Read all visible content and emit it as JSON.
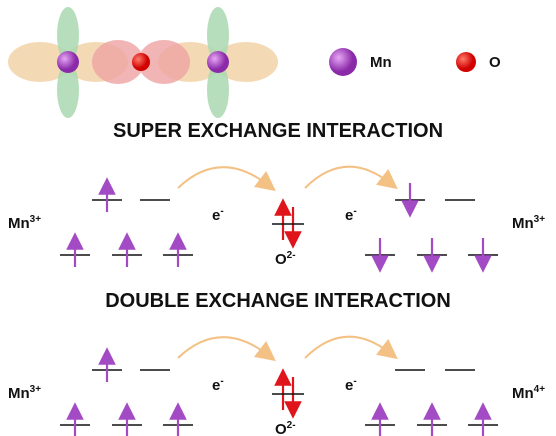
{
  "legend": [
    {
      "label": "Mn"
    },
    {
      "label": "O"
    }
  ],
  "sections": [
    {
      "title": "SUPER EXCHANGE INTERACTION",
      "left_ion": {
        "base": "Mn",
        "sup": "3+"
      },
      "right_ion": {
        "base": "Mn",
        "sup": "3+"
      },
      "electron_left": {
        "base": "e",
        "sup": "-"
      },
      "electron_right": {
        "base": "e",
        "sup": "-"
      },
      "oxygen": {
        "base": "O",
        "sup": "2-"
      }
    },
    {
      "title": "DOUBLE EXCHANGE INTERACTION",
      "left_ion": {
        "base": "Mn",
        "sup": "3+"
      },
      "right_ion": {
        "base": "Mn",
        "sup": "4+"
      },
      "electron_left": {
        "base": "e",
        "sup": "-"
      },
      "electron_right": {
        "base": "e",
        "sup": "-"
      },
      "oxygen": {
        "base": "O",
        "sup": "2-"
      }
    }
  ]
}
